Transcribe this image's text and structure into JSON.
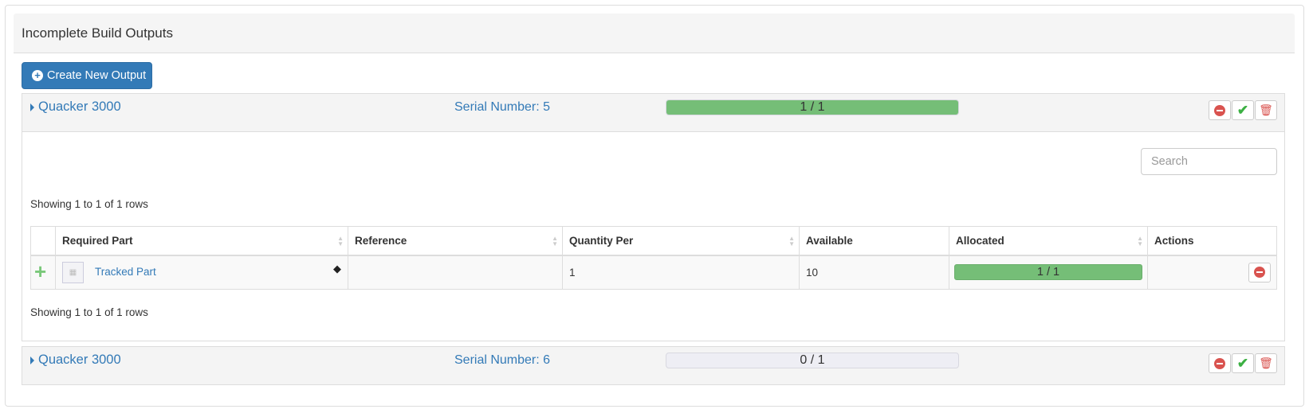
{
  "title": "Incomplete Build Outputs",
  "create_button": "Create New Output",
  "outputs": [
    {
      "name": "Quacker 3000",
      "serial": "Serial Number: 5",
      "progress_text": "1 / 1",
      "progress": 1.0,
      "expanded": true
    },
    {
      "name": "Quacker 3000",
      "serial": "Serial Number: 6",
      "progress_text": "0 / 1",
      "progress": 0.0,
      "expanded": false
    }
  ],
  "search_placeholder": "Search",
  "showing": "Showing 1 to 1 of 1 rows",
  "table": {
    "columns": [
      "",
      "Required Part",
      "Reference",
      "Quantity Per",
      "Available",
      "Allocated",
      "Actions"
    ],
    "rows": [
      {
        "part": "Tracked Part",
        "reference": "",
        "quantity": "1",
        "available": "10",
        "allocated_text": "1 / 1",
        "allocated": 1.0
      }
    ]
  },
  "colors": {
    "primary": "#337ab7",
    "success": "#75be77",
    "danger": "#d9534f",
    "check": "#3cb043"
  }
}
